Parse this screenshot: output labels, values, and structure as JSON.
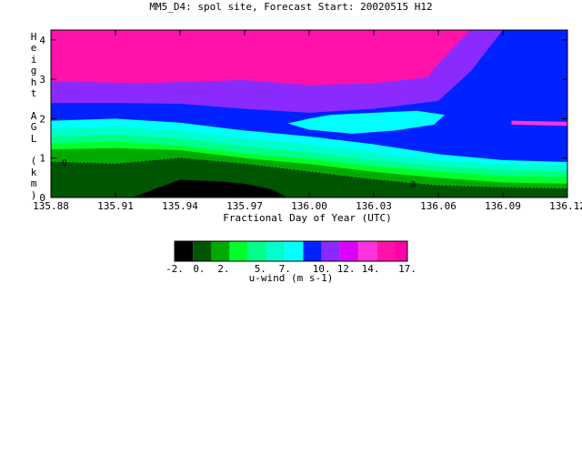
{
  "chart_data": {
    "type": "heatmap",
    "title": "MM5_D4: spol site,  Forecast Start: 20020515 H12",
    "xlabel": "Fractional Day of Year (UTC)",
    "ylabel": "Height AGL (km)",
    "xlim": [
      135.88,
      136.12
    ],
    "ylim": [
      0,
      4.25
    ],
    "x_ticks": [
      "135.88",
      "135.91",
      "135.94",
      "135.97",
      "136.00",
      "136.03",
      "136.06",
      "136.09",
      "136.12"
    ],
    "y_ticks": [
      "0",
      "1",
      "2",
      "3",
      "4"
    ],
    "contour_labels": [
      "0",
      "0"
    ],
    "colorbar": {
      "label": "u-wind (m s-1)",
      "levels": [
        -2,
        -0.5,
        1,
        2.5,
        4,
        5.5,
        7,
        8.5,
        10,
        11.5,
        13,
        14.5,
        16,
        17
      ],
      "tick_labels": [
        "-2.",
        "0.",
        "2.",
        "5.",
        "7.",
        "10.",
        "12.",
        "14.",
        "17."
      ],
      "colors": [
        "#000000",
        "#005500",
        "#00aa00",
        "#00ff2a",
        "#00ff8a",
        "#00ffcc",
        "#00ffff",
        "#0022ff",
        "#8a2aff",
        "#dd00ff",
        "#ff33dd",
        "#ff11aa",
        "#ff00aa"
      ]
    },
    "bands": [
      {
        "level": 17,
        "color": "#ff00aa",
        "x": [
          135.88,
          136.12
        ],
        "upper": [
          4.25,
          4.25
        ],
        "lower": [
          0,
          0
        ]
      },
      {
        "level": 14.5,
        "color": "#ff11aa",
        "x": [
          135.88,
          136.12
        ],
        "upper": [
          4.25,
          4.25
        ],
        "lower": [
          0,
          0
        ]
      },
      {
        "level": 13,
        "color": "#8a2aff",
        "x": [
          135.88,
          135.92,
          135.97,
          136.0,
          136.03,
          136.055,
          136.06,
          136.075,
          136.09,
          136.12
        ],
        "upper": [
          2.95,
          2.9,
          2.98,
          2.85,
          2.9,
          3.05,
          3.4,
          4.25,
          4.25,
          4.25
        ]
      },
      {
        "level": 11.5,
        "color": "#0022ff",
        "x": [
          135.88,
          135.91,
          135.94,
          135.97,
          136.0,
          136.03,
          136.06,
          136.075,
          136.09,
          136.12
        ],
        "upper": [
          2.4,
          2.4,
          2.38,
          2.25,
          2.15,
          2.25,
          2.45,
          3.2,
          4.25,
          4.25
        ]
      },
      {
        "level": 10,
        "color": "#00ffff",
        "x": [
          135.88,
          135.91,
          135.94,
          135.97,
          136.0,
          136.03,
          136.06,
          136.09,
          136.12
        ],
        "upper": [
          1.95,
          2.0,
          1.9,
          1.7,
          1.55,
          1.35,
          1.1,
          0.95,
          0.9
        ]
      },
      {
        "level": 8.5,
        "color": "#00ffcc",
        "x": [
          135.88,
          135.91,
          135.94,
          135.97,
          136.0,
          136.03,
          136.06,
          136.09,
          136.12
        ],
        "upper": [
          1.75,
          1.8,
          1.7,
          1.5,
          1.35,
          1.15,
          0.95,
          0.85,
          0.8
        ]
      },
      {
        "level": 7,
        "color": "#00ff8a",
        "x": [
          135.88,
          135.91,
          135.94,
          135.97,
          136.0,
          136.03,
          136.06,
          136.09,
          136.12
        ],
        "upper": [
          1.55,
          1.6,
          1.5,
          1.3,
          1.15,
          0.95,
          0.8,
          0.7,
          0.68
        ]
      },
      {
        "level": 5.5,
        "color": "#00ff2a",
        "x": [
          135.88,
          135.91,
          135.94,
          135.97,
          136.0,
          136.03,
          136.06,
          136.09,
          136.12
        ],
        "upper": [
          1.38,
          1.42,
          1.32,
          1.12,
          0.98,
          0.8,
          0.66,
          0.55,
          0.52
        ]
      },
      {
        "level": 4,
        "color": "#00aa00",
        "x": [
          135.88,
          135.91,
          135.94,
          135.97,
          136.0,
          136.03,
          136.06,
          136.09,
          136.12
        ],
        "upper": [
          1.22,
          1.25,
          1.2,
          1.0,
          0.85,
          0.65,
          0.5,
          0.38,
          0.35
        ]
      },
      {
        "level": 2.5,
        "color": "#005500",
        "x": [
          135.88,
          135.91,
          135.94,
          135.97,
          136.0,
          136.03,
          136.06,
          136.09,
          136.12
        ],
        "upper": [
          0.9,
          0.85,
          1.0,
          0.85,
          0.65,
          0.45,
          0.3,
          0.25,
          0.22
        ]
      },
      {
        "level": -0.5,
        "color": "#000000",
        "x": [
          135.918,
          135.93,
          135.94,
          135.96,
          135.97,
          135.983,
          135.99,
          135.983,
          135.97,
          135.95,
          135.93
        ],
        "upper": [
          0,
          0.25,
          0.45,
          0.4,
          0.35,
          0.2,
          0,
          0,
          0,
          0,
          0
        ]
      }
    ],
    "islands": [
      {
        "level": 10,
        "color": "#00ffff",
        "x": [
          135.99,
          136.0,
          136.01,
          136.03,
          136.05,
          136.063,
          136.058,
          136.04,
          136.02,
          136.0,
          135.99
        ],
        "y": [
          1.88,
          2.0,
          2.1,
          2.15,
          2.2,
          2.1,
          1.85,
          1.7,
          1.62,
          1.72,
          1.88
        ]
      },
      {
        "level": 14.5,
        "color": "#ff33dd",
        "x": [
          136.094,
          136.12,
          136.12,
          136.094
        ],
        "y": [
          1.95,
          1.92,
          1.82,
          1.85
        ]
      }
    ]
  }
}
